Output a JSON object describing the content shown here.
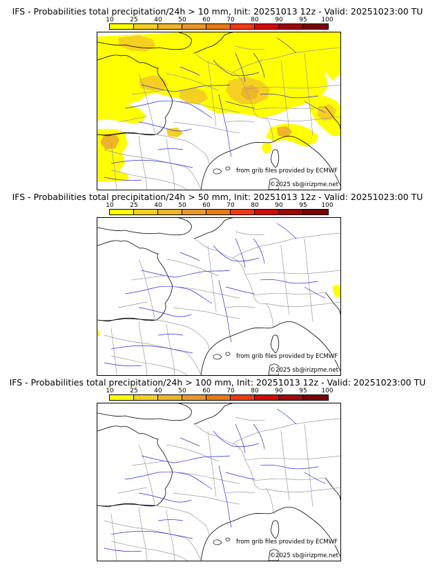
{
  "legend": {
    "ticks": [
      "10",
      "25",
      "40",
      "50",
      "60",
      "70",
      "80",
      "90",
      "95",
      "100"
    ],
    "colors": [
      "#ffff00",
      "#f5d020",
      "#eeb42a",
      "#e8982a",
      "#e67a16",
      "#f03a14",
      "#d40a0a",
      "#a00808",
      "#7a0404",
      "#520202"
    ]
  },
  "panels": [
    {
      "title": "IFS - Probabilities total precipitation/24h > 10 mm, Init: 20251013 12z - Valid: 20251023:00 TU",
      "source": "from grib files provided by ECMWF",
      "copyright": "©2025 sb@irizpme.net"
    },
    {
      "title": "IFS - Probabilities total precipitation/24h > 50 mm, Init: 20251013 12z - Valid: 20251023:00 TU",
      "source": "from grib files provided by ECMWF",
      "copyright": "©2025 sb@irizpme.net"
    },
    {
      "title": "IFS - Probabilities total precipitation/24h > 100 mm, Init: 20251013 12z - Valid: 20251023:00 TU",
      "source": "from grib files provided by ECMWF",
      "copyright": "©2025 sb@irizpme.net"
    }
  ]
}
